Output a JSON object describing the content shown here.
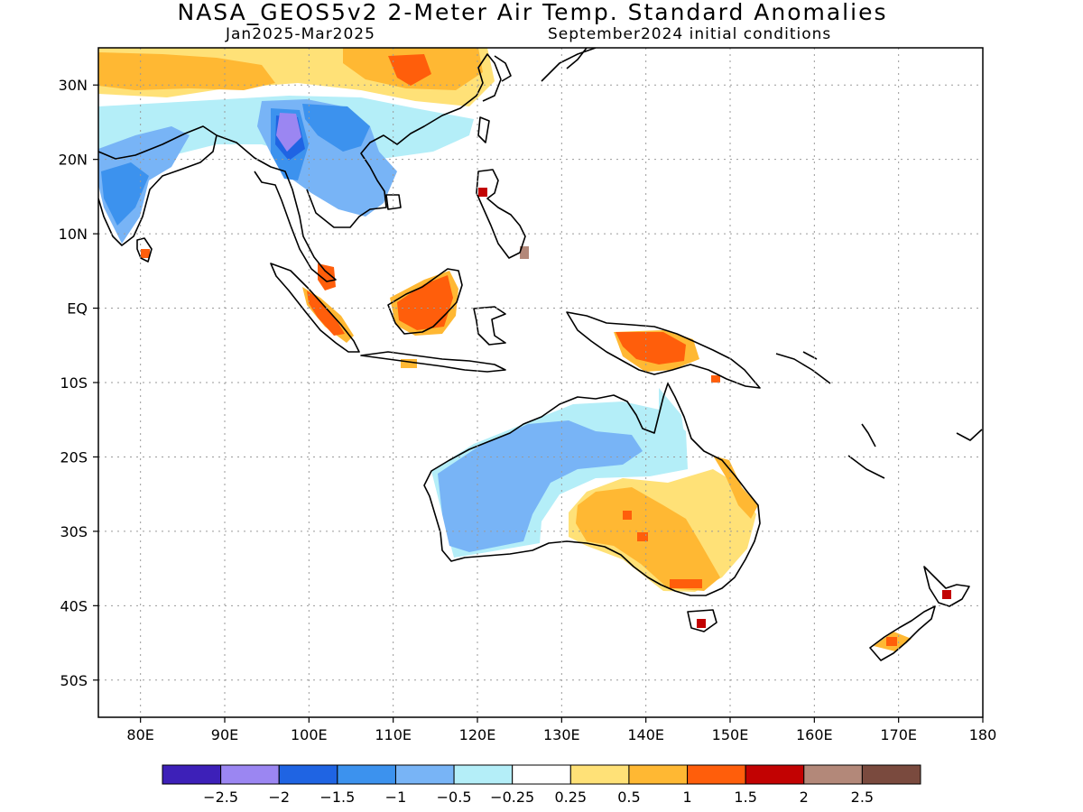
{
  "header": {
    "title": "NASA_GEOS5v2 2-Meter Air Temp. Standard Anomalies",
    "period": "Jan2025-Mar2025",
    "init": "September2024 initial conditions"
  },
  "map": {
    "lon_range": [
      75,
      180
    ],
    "lat_range": [
      -55,
      35
    ],
    "lat_ticks": [
      {
        "value": 30,
        "label": "30N"
      },
      {
        "value": 20,
        "label": "20N"
      },
      {
        "value": 10,
        "label": "10N"
      },
      {
        "value": 0,
        "label": "EQ"
      },
      {
        "value": -10,
        "label": "10S"
      },
      {
        "value": -20,
        "label": "20S"
      },
      {
        "value": -30,
        "label": "30S"
      },
      {
        "value": -40,
        "label": "40S"
      },
      {
        "value": -50,
        "label": "50S"
      }
    ],
    "lon_ticks": [
      {
        "value": 80,
        "label": "80E"
      },
      {
        "value": 90,
        "label": "90E"
      },
      {
        "value": 100,
        "label": "100E"
      },
      {
        "value": 110,
        "label": "110E"
      },
      {
        "value": 120,
        "label": "120E"
      },
      {
        "value": 130,
        "label": "130E"
      },
      {
        "value": 140,
        "label": "140E"
      },
      {
        "value": 150,
        "label": "150E"
      },
      {
        "value": 160,
        "label": "160E"
      },
      {
        "value": 170,
        "label": "170E"
      },
      {
        "value": 180,
        "label": "180"
      }
    ]
  },
  "colorbar": {
    "colors": [
      "#3d20b8",
      "#9b86f2",
      "#1f64e3",
      "#3c92ee",
      "#78b4f6",
      "#b4eef8",
      "#ffffff",
      "#ffe177",
      "#ffb833",
      "#ff5e0b",
      "#c20202",
      "#b38879",
      "#7a4a3e"
    ],
    "labels": [
      "-2.5",
      "-2",
      "-1.5",
      "-1",
      "-0.5",
      "-0.25",
      "0.25",
      "0.5",
      "1",
      "1.5",
      "2",
      "2.5"
    ]
  }
}
